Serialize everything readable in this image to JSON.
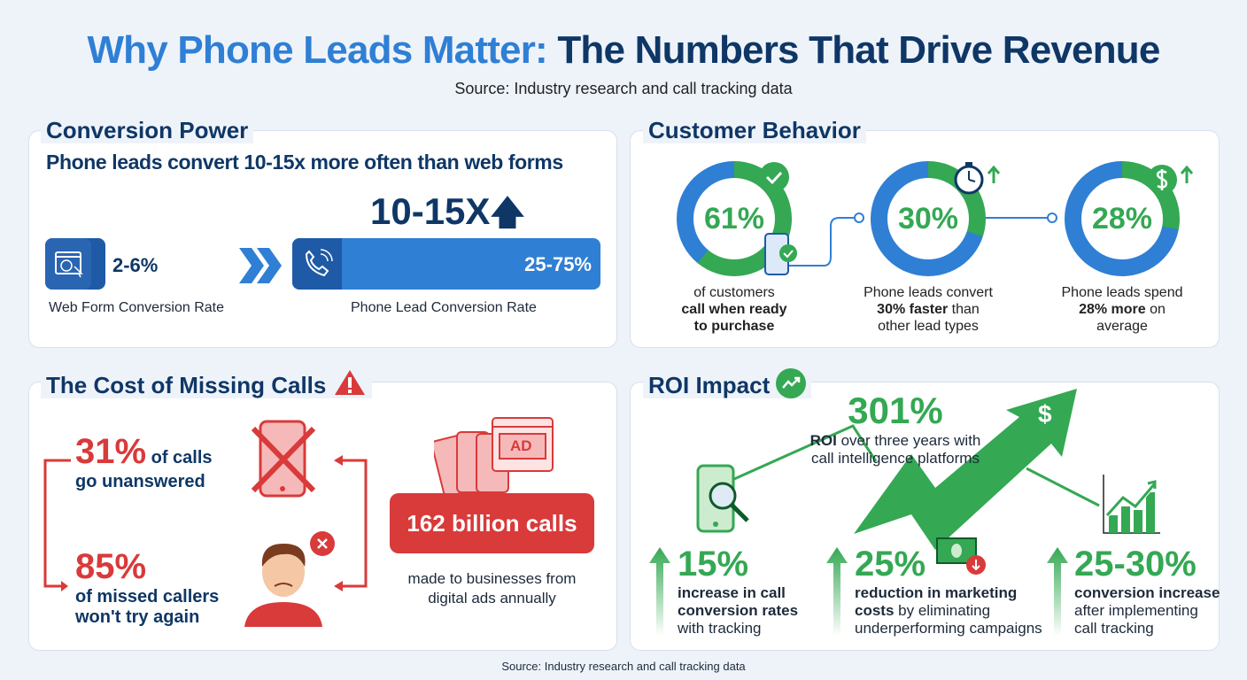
{
  "title": {
    "part1": "Why Phone Leads Matter:",
    "part2": "The Numbers That Drive Revenue"
  },
  "subtitle": "Source: Industry research and call tracking data",
  "footer": "Source: Industry research and call tracking data",
  "colors": {
    "navy": "#0f3766",
    "blue": "#2f7fd4",
    "green": "#34a853",
    "red": "#d93a3a"
  },
  "conversion": {
    "title": "Conversion Power",
    "headline": "Phone leads convert 10-15x more often than web forms",
    "multiplier": "10-15X",
    "web": {
      "value": "2-6%",
      "label": "Web Form Conversion Rate",
      "icon": "web-browser-icon"
    },
    "phone": {
      "value": "25-75%",
      "label": "Phone Lead Conversion Rate",
      "icon": "phone-call-icon"
    }
  },
  "behavior": {
    "title": "Customer Behavior",
    "items": [
      {
        "value": "61%",
        "percent": 61,
        "line1": "of customers",
        "line2": "call when ready",
        "line3": "to purchase",
        "icon": "check-icon"
      },
      {
        "value": "30%",
        "percent": 30,
        "line1": "Phone leads convert",
        "line2b": "30% faster",
        "line2": " than",
        "line3": "other lead types",
        "icon": "stopwatch-icon"
      },
      {
        "value": "28%",
        "percent": 28,
        "line1": "Phone leads spend",
        "line2b": "28% more",
        "line2": " on",
        "line3": "average",
        "icon": "dollar-icon"
      }
    ]
  },
  "missing": {
    "title": "The Cost of Missing Calls",
    "unanswered": {
      "value": "31%",
      "text1": " of calls",
      "text2": "go unanswered"
    },
    "missed": {
      "value": "85%",
      "text1": "of missed callers",
      "text2": "won't try again"
    },
    "calls": {
      "value": "162 billion calls",
      "text1": "made to businesses from",
      "text2": "digital ads annually"
    },
    "ad_label": "AD"
  },
  "roi": {
    "title": "ROI Impact",
    "headline": {
      "value": "301%",
      "bold": "ROI",
      "text1": " over three years with",
      "text2": "call intelligence platforms"
    },
    "dollar": "$",
    "stats": [
      {
        "value": "15%",
        "bold1": "increase in call",
        "bold2": "conversion rates",
        "text": "with tracking"
      },
      {
        "value": "25%",
        "bold1": "reduction in marketing",
        "bold2": "costs",
        "text2": " by eliminating",
        "text": "underperforming campaigns"
      },
      {
        "value": "25-30%",
        "bold1": "conversion increase",
        "text1": "after implementing",
        "text": "call tracking"
      }
    ]
  }
}
